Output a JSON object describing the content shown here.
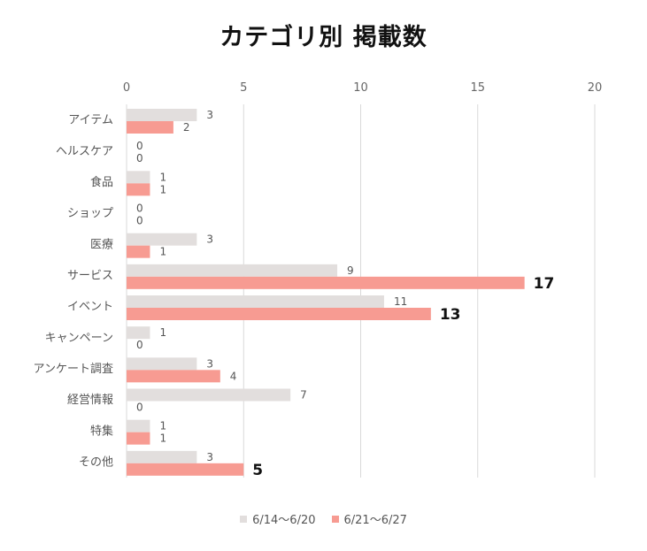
{
  "title": "カテゴリ別 掲載数",
  "colors": {
    "series1": "#e2dedd",
    "series2": "#f79b92"
  },
  "chart_data": {
    "type": "bar",
    "orientation": "horizontal",
    "title": "カテゴリ別 掲載数",
    "xlabel": "",
    "ylabel": "",
    "xlim": [
      0,
      20
    ],
    "xticks": [
      0,
      5,
      10,
      15,
      20
    ],
    "grid": true,
    "legend_position": "bottom",
    "categories": [
      "アイテム",
      "ヘルスケア",
      "食品",
      "ショップ",
      "医療",
      "サービス",
      "イベント",
      "キャンペーン",
      "アンケート調査",
      "経営情報",
      "特集",
      "その他"
    ],
    "series": [
      {
        "name": "6/14～6/20",
        "values": [
          3,
          0,
          1,
          0,
          3,
          9,
          11,
          1,
          3,
          7,
          1,
          3
        ]
      },
      {
        "name": "6/21～6/27",
        "values": [
          2,
          0,
          1,
          0,
          1,
          17,
          13,
          0,
          4,
          0,
          1,
          5
        ]
      }
    ],
    "emphasized_labels": [
      5,
      6,
      11
    ]
  }
}
